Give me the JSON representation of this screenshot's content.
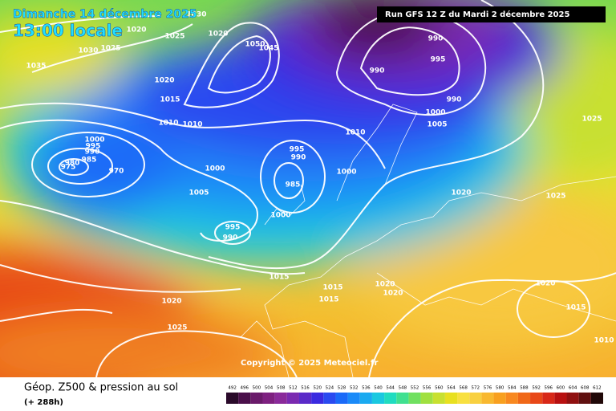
{
  "header": {
    "date": "Dimanche 14 décembre 2025",
    "time": "13:00 locale",
    "run": "Run GFS 12 Z du Mardi 2 décembre 2025"
  },
  "copyright": "Copyright © 2025 Meteociel.fr",
  "footer": {
    "title": "Géop. Z500 & pression au sol",
    "lead": "(+ 288h)"
  },
  "isobar_labels": [
    "1030",
    "1020",
    "1025",
    "1030",
    "1025",
    "1035",
    "1020",
    "1050",
    "1045",
    "1020",
    "1015",
    "1010",
    "1010",
    "990",
    "995",
    "990",
    "990",
    "1000",
    "1005",
    "1025",
    "1010",
    "1000",
    "995",
    "990",
    "985",
    "980",
    "975",
    "970",
    "995",
    "990",
    "1000",
    "1000",
    "985",
    "1005",
    "1020",
    "1025",
    "995",
    "990",
    "1000",
    "1015",
    "1020",
    "1020",
    "1015",
    "1015",
    "1020",
    "1015",
    "1020",
    "1025",
    "1010"
  ],
  "colorbar": {
    "values": [
      492,
      496,
      500,
      504,
      508,
      512,
      516,
      520,
      524,
      528,
      532,
      536,
      540,
      544,
      548,
      552,
      556,
      560,
      564,
      568,
      572,
      576,
      580,
      584,
      588,
      592,
      596,
      600,
      604,
      608,
      612
    ],
    "colors": [
      "#2a0a2a",
      "#4a0f4a",
      "#6a1a6a",
      "#7e2080",
      "#8a2a9a",
      "#7a2ab0",
      "#5a2ac8",
      "#3a2ae0",
      "#2a4af0",
      "#1a6af8",
      "#1a8af8",
      "#1aaaf0",
      "#1ac8e0",
      "#20dcc0",
      "#40e090",
      "#70e060",
      "#a0e040",
      "#c8e030",
      "#e8e020",
      "#f8e040",
      "#f8d040",
      "#f8b830",
      "#f8a020",
      "#f88820",
      "#f06818",
      "#e84818",
      "#d82818",
      "#b81010",
      "#901010",
      "#601010",
      "#200808"
    ]
  }
}
